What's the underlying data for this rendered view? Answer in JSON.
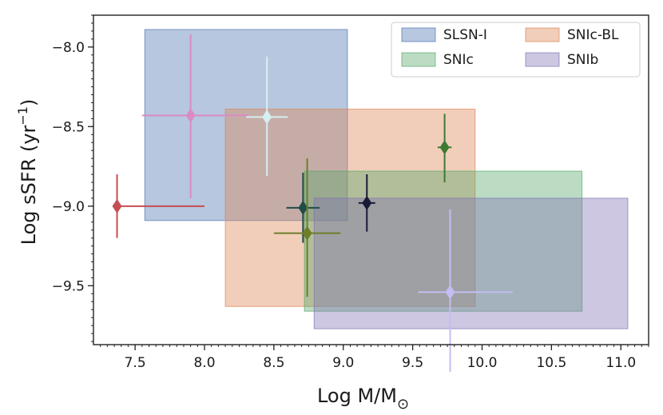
{
  "chart_data": {
    "type": "scatter",
    "xlabel": "Log M/M",
    "xlabel_sub": "⊙",
    "ylabel": "Log sSFR (yr",
    "ylabel_sup": "−1",
    "ylabel_end": ")",
    "xlim": [
      7.2,
      11.2
    ],
    "ylim": [
      -9.87,
      -7.8
    ],
    "xticks": [
      7.5,
      8.0,
      8.5,
      9.0,
      9.5,
      10.0,
      10.5,
      11.0
    ],
    "xtick_labels": [
      "7.5",
      "8.0",
      "8.5",
      "9.0",
      "9.5",
      "10.0",
      "10.5",
      "11.0"
    ],
    "yticks": [
      -8.0,
      -8.5,
      -9.0,
      -9.5
    ],
    "ytick_labels": [
      "−8.0",
      "−8.5",
      "−9.0",
      "−9.5"
    ],
    "legend_position": "top-right",
    "regions": [
      {
        "name": "SLSN-I",
        "x0": 7.57,
        "x1": 9.03,
        "y0": -9.09,
        "y1": -7.89,
        "color": "#4c72b0"
      },
      {
        "name": "SNIc-BL",
        "x0": 8.15,
        "x1": 9.95,
        "y0": -9.63,
        "y1": -8.39,
        "color": "#dd8452"
      },
      {
        "name": "SNIc",
        "x0": 8.72,
        "x1": 10.72,
        "y0": -9.66,
        "y1": -8.78,
        "color": "#55a868"
      },
      {
        "name": "SNIb",
        "x0": 8.79,
        "x1": 11.05,
        "y0": -9.77,
        "y1": -8.95,
        "color": "#8172b3"
      }
    ],
    "points": [
      {
        "x": 7.37,
        "y": -9.0,
        "xerr": [
          0.0,
          0.63
        ],
        "yerr": [
          0.2,
          0.2
        ],
        "color": "#c44e52"
      },
      {
        "x": 7.9,
        "y": -8.43,
        "xerr": [
          0.35,
          0.42
        ],
        "yerr": [
          0.52,
          0.51
        ],
        "color": "#da8bc3"
      },
      {
        "x": 8.45,
        "y": -8.44,
        "xerr": [
          0.15,
          0.15
        ],
        "yerr": [
          0.37,
          0.38
        ],
        "color": "#d7eef1"
      },
      {
        "x": 8.71,
        "y": -9.01,
        "xerr": [
          0.12,
          0.12
        ],
        "yerr": [
          0.22,
          0.22
        ],
        "color": "#1e4d4a"
      },
      {
        "x": 8.74,
        "y": -9.17,
        "xerr": [
          0.24,
          0.24
        ],
        "yerr": [
          0.4,
          0.47
        ],
        "color": "#6d7d2a"
      },
      {
        "x": 9.17,
        "y": -8.98,
        "xerr": [
          0.06,
          0.06
        ],
        "yerr": [
          0.18,
          0.18
        ],
        "color": "#181a38"
      },
      {
        "x": 9.73,
        "y": -8.63,
        "xerr": [
          0.05,
          0.05
        ],
        "yerr": [
          0.22,
          0.21
        ],
        "color": "#3d7a32"
      },
      {
        "x": 9.77,
        "y": -9.54,
        "xerr": [
          0.23,
          0.45
        ],
        "yerr": [
          0.5,
          0.52
        ],
        "color": "#c3bdf2"
      }
    ]
  }
}
